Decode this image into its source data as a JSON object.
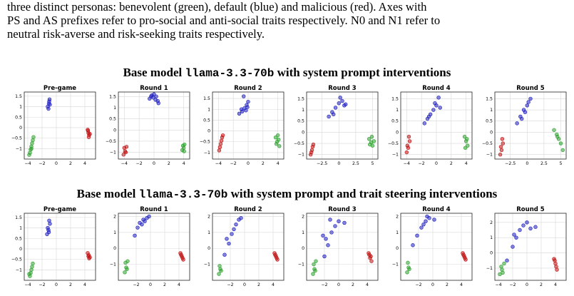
{
  "intro": {
    "line1": "three distinct personas: benevolent (green), default (blue) and malicious (red). Axes with",
    "line2": "PS and AS prefixes refer to pro-social and anti-social traits respectively. N0 and N1 refer to",
    "line3": "neutral risk-averse and risk-seeking traits respectively."
  },
  "colors": {
    "green": "#2ca02c",
    "blue": "#1f1fbf",
    "red": "#c01010"
  },
  "figure1": {
    "title_pre": "Base model ",
    "title_model": "llama-3.3-70b",
    "title_post": " with system prompt interventions"
  },
  "figure2": {
    "title_pre": "Base model ",
    "title_model": "llama-3.3-70b",
    "title_post": " with system prompt and trait steering interventions"
  },
  "chart_data": [
    {
      "type": "scatter",
      "title": "Pre-game",
      "xlim": [
        -4.5,
        5.5
      ],
      "ylim": [
        -1.5,
        1.7
      ],
      "xticks": [
        -4,
        -2,
        0,
        2,
        4
      ],
      "yticks": [
        -1.0,
        -0.5,
        0.0,
        0.5,
        1.0,
        1.5
      ],
      "series": [
        {
          "color": "green",
          "x": [
            -3.7,
            -3.5,
            -3.3,
            -3.6,
            -3.4,
            -3.8,
            -3.2,
            -3.5
          ],
          "y": [
            -1.2,
            -0.9,
            -0.6,
            -1.05,
            -0.75,
            -1.3,
            -0.45,
            -1.0
          ]
        },
        {
          "color": "blue",
          "x": [
            -1.2,
            -1.0,
            -0.9,
            -1.1,
            -0.95,
            -1.05
          ],
          "y": [
            1.0,
            1.25,
            1.1,
            0.9,
            1.35,
            1.15
          ]
        },
        {
          "color": "red",
          "x": [
            4.4,
            4.5,
            4.6,
            4.55,
            4.7,
            4.45
          ],
          "y": [
            -0.1,
            -0.25,
            -0.35,
            -0.45,
            -0.3,
            -0.15
          ]
        }
      ]
    },
    {
      "type": "scatter",
      "title": "Round 1",
      "xlim": [
        -4.8,
        4.8
      ],
      "ylim": [
        -1.3,
        1.7
      ],
      "xticks": [
        -4,
        -2,
        0,
        2,
        4
      ],
      "yticks": [
        -1.0,
        -0.5,
        0.0,
        0.5,
        1.0,
        1.5
      ],
      "series": [
        {
          "color": "green",
          "x": [
            3.8,
            4.0,
            4.1,
            3.9,
            4.05
          ],
          "y": [
            -0.9,
            -0.8,
            -0.65,
            -0.7,
            -0.95
          ]
        },
        {
          "color": "blue",
          "x": [
            -0.6,
            -0.3,
            0.0,
            0.3,
            0.5,
            -0.1,
            0.2,
            0.6,
            -0.4
          ],
          "y": [
            1.4,
            1.55,
            1.6,
            1.5,
            1.3,
            1.45,
            1.35,
            1.2,
            1.5
          ]
        },
        {
          "color": "red",
          "x": [
            -4.1,
            -3.9,
            -3.7,
            -4.0,
            -3.8
          ],
          "y": [
            -1.1,
            -0.95,
            -0.75,
            -0.8,
            -1.0
          ]
        }
      ]
    },
    {
      "type": "scatter",
      "title": "Round 2",
      "xlim": [
        -4.8,
        4.8
      ],
      "ylim": [
        -1.3,
        1.8
      ],
      "xticks": [
        -4,
        -2,
        0,
        2,
        4
      ],
      "yticks": [
        -1.0,
        -0.5,
        0.0,
        0.5,
        1.0,
        1.5
      ],
      "series": [
        {
          "color": "green",
          "x": [
            3.7,
            3.9,
            4.1,
            4.2,
            3.8,
            4.0
          ],
          "y": [
            -0.3,
            -0.5,
            -0.4,
            -0.7,
            -0.6,
            -0.2
          ]
        },
        {
          "color": "blue",
          "x": [
            -1.2,
            -0.8,
            -0.5,
            -0.2,
            0.0,
            -0.6,
            -0.3,
            -0.9,
            -0.1
          ],
          "y": [
            0.8,
            0.9,
            1.05,
            1.2,
            1.35,
            1.6,
            0.95,
            1.0,
            1.1
          ]
        },
        {
          "color": "red",
          "x": [
            -3.9,
            -3.7,
            -3.5,
            -3.8,
            -3.6,
            -3.4
          ],
          "y": [
            -0.9,
            -0.6,
            -0.3,
            -0.75,
            -0.45,
            -0.2
          ]
        }
      ]
    },
    {
      "type": "scatter",
      "title": "Round 3",
      "xlim": [
        -4.8,
        5.8
      ],
      "ylim": [
        -1.2,
        1.8
      ],
      "xticks": [
        -2.5,
        0.0,
        2.5,
        5.0
      ],
      "yticks": [
        -1.0,
        -0.5,
        0.0,
        0.5,
        1.0,
        1.5
      ],
      "series": [
        {
          "color": "green",
          "x": [
            4.5,
            4.8,
            5.0,
            5.2,
            4.6,
            4.9
          ],
          "y": [
            -0.3,
            -0.45,
            -0.6,
            -0.4,
            -0.55,
            -0.2
          ]
        },
        {
          "color": "blue",
          "x": [
            -1.5,
            -1.0,
            -0.5,
            0.0,
            0.5,
            1.0,
            -0.8,
            0.2,
            0.8
          ],
          "y": [
            0.7,
            0.9,
            1.1,
            1.3,
            1.4,
            1.25,
            0.8,
            1.55,
            1.2
          ]
        },
        {
          "color": "red",
          "x": [
            -4.2,
            -4.0,
            -3.8,
            -4.1,
            -3.9
          ],
          "y": [
            -1.0,
            -0.8,
            -0.55,
            -0.9,
            -0.65
          ]
        }
      ]
    },
    {
      "type": "scatter",
      "title": "Round 4",
      "xlim": [
        -4.8,
        4.8
      ],
      "ylim": [
        -1.2,
        1.8
      ],
      "xticks": [
        -4,
        -2,
        0,
        2,
        4
      ],
      "yticks": [
        -1.0,
        -0.5,
        0.0,
        0.5,
        1.0,
        1.5
      ],
      "series": [
        {
          "color": "green",
          "x": [
            3.8,
            4.0,
            4.2,
            3.9,
            4.1
          ],
          "y": [
            -0.2,
            -0.4,
            -0.6,
            -0.7,
            -0.3
          ]
        },
        {
          "color": "blue",
          "x": [
            -1.6,
            -1.2,
            -0.8,
            -0.4,
            0.0,
            0.3,
            -1.0,
            0.5,
            -0.2
          ],
          "y": [
            0.4,
            0.6,
            0.8,
            1.0,
            1.2,
            1.55,
            0.7,
            1.1,
            1.3
          ]
        },
        {
          "color": "red",
          "x": [
            -4.0,
            -3.8,
            -3.6,
            -3.9,
            -3.7
          ],
          "y": [
            -0.9,
            -0.7,
            -0.4,
            -0.6,
            -0.2
          ]
        }
      ]
    },
    {
      "type": "scatter",
      "title": "Round 5",
      "xlim": [
        -4.8,
        5.8
      ],
      "ylim": [
        -1.2,
        1.8
      ],
      "xticks": [
        -2.5,
        0.0,
        2.5,
        5.0
      ],
      "yticks": [
        -1.0,
        -0.5,
        0.0,
        0.5,
        1.0,
        1.5
      ],
      "series": [
        {
          "color": "green",
          "x": [
            4.0,
            4.4,
            4.7,
            5.0,
            5.3,
            4.5
          ],
          "y": [
            0.1,
            -0.1,
            -0.3,
            -0.5,
            -0.8,
            -0.2
          ]
        },
        {
          "color": "blue",
          "x": [
            -1.5,
            -1.0,
            -0.5,
            0.0,
            0.5,
            -0.8,
            0.2,
            -0.3
          ],
          "y": [
            0.4,
            0.7,
            1.0,
            1.2,
            1.5,
            0.6,
            1.35,
            0.9
          ]
        },
        {
          "color": "red",
          "x": [
            -4.0,
            -3.8,
            -3.6,
            -3.9,
            -3.7
          ],
          "y": [
            -1.0,
            -0.8,
            -0.5,
            -0.65,
            -0.3
          ]
        }
      ]
    },
    {
      "type": "scatter",
      "title": "Pre-game",
      "xlim": [
        -4.5,
        5.5
      ],
      "ylim": [
        -1.5,
        1.7
      ],
      "xticks": [
        -4,
        -2,
        0,
        2,
        4
      ],
      "yticks": [
        -1.0,
        -0.5,
        0.0,
        0.5,
        1.0,
        1.5
      ],
      "series": [
        {
          "color": "green",
          "x": [
            -3.7,
            -3.5,
            -3.3,
            -3.6,
            -3.4,
            -3.8
          ],
          "y": [
            -1.3,
            -1.0,
            -0.7,
            -1.15,
            -0.85,
            -1.2
          ]
        },
        {
          "color": "blue",
          "x": [
            -1.3,
            -1.1,
            -0.9,
            -1.2,
            -1.0,
            -1.05
          ],
          "y": [
            0.7,
            0.9,
            1.2,
            1.0,
            1.35,
            0.8
          ]
        },
        {
          "color": "red",
          "x": [
            4.4,
            4.5,
            4.6,
            4.55,
            4.7
          ],
          "y": [
            -0.2,
            -0.35,
            -0.45,
            -0.3,
            -0.4
          ]
        }
      ]
    },
    {
      "type": "scatter",
      "title": "Round 1",
      "xlim": [
        -4.5,
        5.5
      ],
      "ylim": [
        -2.0,
        2.2
      ],
      "xticks": [
        -2,
        0,
        2,
        4
      ],
      "yticks": [
        -1,
        0,
        1,
        2
      ],
      "series": [
        {
          "color": "green",
          "x": [
            -3.6,
            -3.4,
            -3.2,
            -3.5,
            -3.3
          ],
          "y": [
            -1.5,
            -1.2,
            -0.8,
            -0.9,
            -1.3
          ]
        },
        {
          "color": "blue",
          "x": [
            -2.2,
            -1.8,
            -1.5,
            -1.0,
            -0.5,
            -1.2,
            -0.2,
            -0.8
          ],
          "y": [
            0.8,
            1.3,
            1.6,
            1.8,
            1.9,
            1.5,
            2.0,
            1.7
          ]
        },
        {
          "color": "red",
          "x": [
            4.2,
            4.4,
            4.6,
            4.5,
            4.3
          ],
          "y": [
            -0.3,
            -0.5,
            -0.7,
            -0.6,
            -0.4
          ]
        }
      ]
    },
    {
      "type": "scatter",
      "title": "Round 2",
      "xlim": [
        -4.5,
        5.5
      ],
      "ylim": [
        -2.0,
        2.2
      ],
      "xticks": [
        -2,
        0,
        2,
        4
      ],
      "yticks": [
        -1,
        0,
        1,
        2
      ],
      "series": [
        {
          "color": "green",
          "x": [
            -3.6,
            -3.4,
            -3.5,
            -3.3
          ],
          "y": [
            -1.6,
            -1.3,
            -1.1,
            -1.4
          ]
        },
        {
          "color": "blue",
          "x": [
            -2.8,
            -2.2,
            -1.8,
            -1.2,
            -0.8,
            -0.5,
            -1.5,
            -2.5
          ],
          "y": [
            -0.4,
            0.3,
            0.9,
            1.5,
            1.8,
            1.9,
            1.2,
            0.6
          ]
        },
        {
          "color": "red",
          "x": [
            4.2,
            4.4,
            4.6,
            4.5,
            4.3
          ],
          "y": [
            -0.3,
            -0.5,
            -0.7,
            -0.6,
            -0.4
          ]
        }
      ]
    },
    {
      "type": "scatter",
      "title": "Round 3",
      "xlim": [
        -4.5,
        5.5
      ],
      "ylim": [
        -2.0,
        2.2
      ],
      "xticks": [
        -2,
        0,
        2,
        4
      ],
      "yticks": [
        -1,
        0,
        1,
        2
      ],
      "series": [
        {
          "color": "green",
          "x": [
            -3.6,
            -3.4,
            -3.5,
            -3.3,
            -3.2
          ],
          "y": [
            -1.6,
            -1.3,
            -1.0,
            -1.4,
            -0.8
          ]
        },
        {
          "color": "blue",
          "x": [
            -2.0,
            -1.5,
            -1.0,
            -0.5,
            0.0,
            0.8,
            -1.8,
            -1.2,
            -2.2
          ],
          "y": [
            -0.5,
            0.2,
            1.0,
            1.4,
            1.7,
            1.6,
            0.6,
            1.8,
            0.8
          ]
        },
        {
          "color": "red",
          "x": [
            4.2,
            4.4,
            4.6,
            4.5,
            4.3
          ],
          "y": [
            -0.3,
            -0.6,
            -0.8,
            -0.5,
            -0.4
          ]
        }
      ]
    },
    {
      "type": "scatter",
      "title": "Round 4",
      "xlim": [
        -4.5,
        5.5
      ],
      "ylim": [
        -2.0,
        2.2
      ],
      "xticks": [
        -2,
        0,
        2,
        4
      ],
      "yticks": [
        -1,
        0,
        1,
        2
      ],
      "series": [
        {
          "color": "green",
          "x": [
            -3.6,
            -3.4,
            -3.5,
            -3.3
          ],
          "y": [
            -1.5,
            -1.2,
            -0.9,
            -1.3
          ]
        },
        {
          "color": "blue",
          "x": [
            -2.8,
            -2.2,
            -1.6,
            -1.0,
            -0.5,
            0.2,
            -1.3,
            -0.8
          ],
          "y": [
            0.2,
            0.8,
            1.3,
            1.7,
            1.9,
            1.8,
            1.5,
            2.0
          ]
        },
        {
          "color": "red",
          "x": [
            4.2,
            4.4,
            4.6,
            4.5,
            4.3
          ],
          "y": [
            -0.3,
            -0.5,
            -0.7,
            -0.6,
            -0.4
          ]
        }
      ]
    },
    {
      "type": "scatter",
      "title": "Round 5",
      "xlim": [
        -4.5,
        5.5
      ],
      "ylim": [
        -1.8,
        2.6
      ],
      "xticks": [
        -4,
        -2,
        0,
        2,
        4
      ],
      "yticks": [
        -1,
        0,
        1,
        2
      ],
      "series": [
        {
          "color": "green",
          "x": [
            -3.8,
            -3.5,
            -3.2,
            -3.6,
            -3.4
          ],
          "y": [
            -1.4,
            -1.1,
            -0.7,
            -0.9,
            -1.3
          ]
        },
        {
          "color": "blue",
          "x": [
            -2.8,
            -2.0,
            -1.5,
            -1.0,
            -0.5,
            0.0,
            0.5,
            1.2,
            -1.8
          ],
          "y": [
            -0.5,
            0.4,
            1.0,
            1.5,
            1.8,
            2.0,
            1.6,
            1.7,
            1.2
          ]
        },
        {
          "color": "red",
          "x": [
            3.8,
            4.0,
            4.2,
            4.1,
            3.9
          ],
          "y": [
            -0.4,
            -0.7,
            -1.1,
            -0.9,
            -0.5
          ]
        }
      ]
    }
  ]
}
